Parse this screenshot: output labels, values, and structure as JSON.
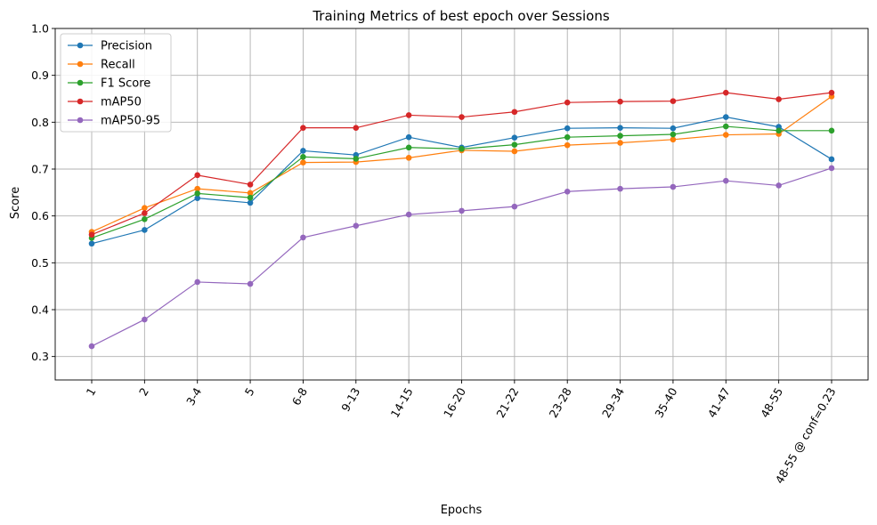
{
  "chart_data": {
    "type": "line",
    "title": "Training Metrics of best epoch over Sessions",
    "xlabel": "Epochs",
    "ylabel": "Score",
    "ylim": [
      0.25,
      1.0
    ],
    "yticks": [
      "0.3",
      "0.4",
      "0.5",
      "0.6",
      "0.7",
      "0.8",
      "0.9",
      "1.0"
    ],
    "grid": true,
    "legend_position": "top-left",
    "categories": [
      "1",
      "2",
      "3-4",
      "5",
      "6-8",
      "9-13",
      "14-15",
      "16-20",
      "21-22",
      "23-28",
      "29-34",
      "35-40",
      "41-47",
      "48-55",
      "48-55 @ conf=0.23"
    ],
    "series": [
      {
        "name": "Precision",
        "color": "#1f77b4",
        "values": [
          0.541,
          0.57,
          0.638,
          0.628,
          0.739,
          0.73,
          0.768,
          0.746,
          0.767,
          0.787,
          0.788,
          0.787,
          0.811,
          0.79,
          0.721
        ]
      },
      {
        "name": "Recall",
        "color": "#ff7f0e",
        "values": [
          0.566,
          0.617,
          0.658,
          0.649,
          0.714,
          0.715,
          0.724,
          0.74,
          0.738,
          0.751,
          0.756,
          0.763,
          0.773,
          0.775,
          0.855
        ]
      },
      {
        "name": "F1 Score",
        "color": "#2ca02c",
        "values": [
          0.553,
          0.593,
          0.648,
          0.639,
          0.726,
          0.722,
          0.746,
          0.743,
          0.752,
          0.768,
          0.771,
          0.774,
          0.791,
          0.782,
          0.782
        ]
      },
      {
        "name": "mAP50",
        "color": "#d62728",
        "values": [
          0.56,
          0.606,
          0.687,
          0.667,
          0.788,
          0.788,
          0.815,
          0.811,
          0.822,
          0.842,
          0.844,
          0.845,
          0.863,
          0.849,
          0.863
        ]
      },
      {
        "name": "mAP50-95",
        "color": "#9467bd",
        "values": [
          0.322,
          0.379,
          0.459,
          0.455,
          0.554,
          0.579,
          0.603,
          0.611,
          0.62,
          0.652,
          0.658,
          0.662,
          0.675,
          0.665,
          0.702
        ]
      }
    ]
  }
}
